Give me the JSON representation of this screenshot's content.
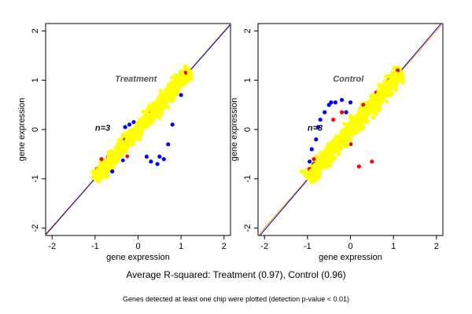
{
  "caption": "Average R-squared: Treatment (0.97), Control (0.96)",
  "footnote": "Genes detected at least one chip were plotted (detection p-value < 0.01)",
  "colors": {
    "yellow": "#ffff00",
    "red": "#ff0000",
    "blue": "#0000ff",
    "identity_line": "#ff9900",
    "regression_line": "#0000cc",
    "annotation_text": "#555555"
  },
  "chart_data": [
    {
      "type": "scatter",
      "title": "Treatment",
      "annotation": "n=3",
      "xlabel": "gene expression",
      "ylabel": "gene expression",
      "xlim": [
        -2.15,
        2.15
      ],
      "ylim": [
        -2.15,
        2.15
      ],
      "xticks": [
        -2,
        -1,
        0,
        1,
        2
      ],
      "yticks": [
        -2,
        -1,
        0,
        1,
        2
      ],
      "point_cloud": {
        "along_range": [
          -1.0,
          1.2
        ],
        "spread_sd": 0.12
      },
      "series": [
        {
          "name": "",
          "color": "yellow",
          "points": [
            [
              -0.9,
              -0.95
            ],
            [
              -0.5,
              -0.45
            ],
            [
              0,
              0.05
            ],
            [
              0.5,
              0.45
            ],
            [
              1.0,
              1.0
            ]
          ]
        },
        {
          "name": "",
          "color": "red",
          "points": [
            [
              -0.95,
              -0.8
            ],
            [
              -0.85,
              -0.6
            ],
            [
              -0.7,
              -0.55
            ],
            [
              -0.3,
              -0.2
            ],
            [
              0.3,
              0.35
            ],
            [
              0.8,
              0.9
            ],
            [
              1.1,
              1.15
            ]
          ]
        },
        {
          "name": "",
          "color": "blue",
          "points": [
            [
              -0.3,
              0.05
            ],
            [
              -0.2,
              0.1
            ],
            [
              -0.1,
              0.15
            ],
            [
              0.2,
              -0.55
            ],
            [
              0.3,
              -0.65
            ],
            [
              0.45,
              -0.7
            ],
            [
              0.5,
              -0.55
            ],
            [
              0.6,
              -0.6
            ],
            [
              0.7,
              -0.3
            ],
            [
              0.8,
              0.1
            ],
            [
              -0.6,
              -0.85
            ],
            [
              1.0,
              0.7
            ]
          ]
        }
      ],
      "lines": [
        {
          "name": "",
          "color": "identity_line",
          "slope": 1.0,
          "intercept": 0.0
        },
        {
          "name": "",
          "color": "regression_line",
          "slope": 0.99,
          "intercept": 0.0
        }
      ]
    },
    {
      "type": "scatter",
      "title": "Control",
      "annotation": "n=3",
      "xlabel": "gene expression",
      "ylabel": "gene expression",
      "xlim": [
        -2.15,
        2.15
      ],
      "ylim": [
        -2.15,
        2.15
      ],
      "xticks": [
        -2,
        -1,
        0,
        1,
        2
      ],
      "yticks": [
        -2,
        -1,
        0,
        1,
        2
      ],
      "point_cloud": {
        "along_range": [
          -1.0,
          1.2
        ],
        "spread_sd": 0.13
      },
      "series": [
        {
          "name": "",
          "color": "yellow",
          "points": [
            [
              -0.9,
              -0.95
            ],
            [
              -0.5,
              -0.45
            ],
            [
              0,
              0.05
            ],
            [
              0.5,
              0.45
            ],
            [
              1.0,
              1.0
            ]
          ]
        },
        {
          "name": "",
          "color": "red",
          "points": [
            [
              -0.95,
              -0.8
            ],
            [
              -0.85,
              -0.6
            ],
            [
              -0.4,
              0.2
            ],
            [
              -0.2,
              0.35
            ],
            [
              0.3,
              0.5
            ],
            [
              0.6,
              0.75
            ],
            [
              0.9,
              1.0
            ],
            [
              1.1,
              1.2
            ],
            [
              0.2,
              -0.75
            ],
            [
              0.5,
              -0.65
            ]
          ]
        },
        {
          "name": "",
          "color": "blue",
          "points": [
            [
              -0.9,
              -0.4
            ],
            [
              -0.8,
              -0.2
            ],
            [
              -0.75,
              0.05
            ],
            [
              -0.7,
              0.2
            ],
            [
              -0.6,
              0.35
            ],
            [
              -0.5,
              0.5
            ],
            [
              -0.45,
              0.55
            ],
            [
              -0.35,
              0.55
            ],
            [
              -0.2,
              0.6
            ],
            [
              -0.1,
              0.35
            ],
            [
              -0.85,
              -0.7
            ],
            [
              -0.95,
              -0.65
            ],
            [
              0.0,
              0.55
            ]
          ]
        }
      ],
      "lines": [
        {
          "name": "",
          "color": "identity_line",
          "slope": 1.0,
          "intercept": 0.0
        },
        {
          "name": "",
          "color": "regression_line",
          "slope": 1.02,
          "intercept": 0.0
        }
      ]
    }
  ]
}
